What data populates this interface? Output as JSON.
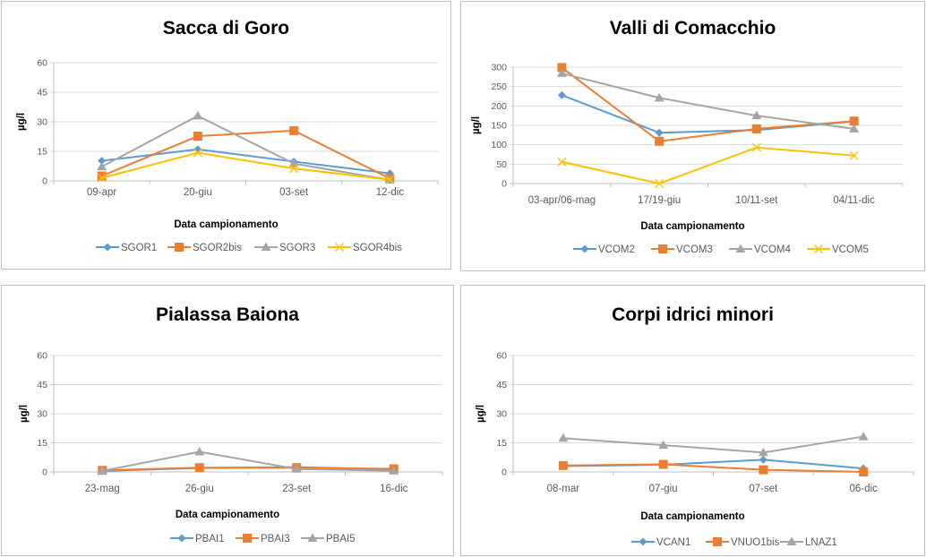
{
  "chart_data": [
    {
      "type": "line",
      "title": "Sacca di Goro",
      "xlabel": "Data campionamento",
      "ylabel": "µg/l",
      "categories": [
        "09-apr",
        "20-giu",
        "03-set",
        "12-dic"
      ],
      "ylim": [
        0,
        60
      ],
      "yticks": [
        0,
        15,
        30,
        45,
        60
      ],
      "grid": true,
      "legend": "bottom",
      "series": [
        {
          "name": "SGOR1",
          "color": "#5B9BD5",
          "marker": "diamond",
          "values": [
            10.2,
            16.0,
            9.8,
            3.8
          ]
        },
        {
          "name": "SGOR2bis",
          "color": "#ED7D31",
          "marker": "square",
          "values": [
            2.5,
            22.7,
            25.5,
            1.2
          ]
        },
        {
          "name": "SGOR3",
          "color": "#A5A5A5",
          "marker": "triangle",
          "values": [
            7.2,
            33.0,
            8.8,
            0.5
          ]
        },
        {
          "name": "SGOR4bis",
          "color": "#FFC000",
          "marker": "x",
          "values": [
            1.5,
            14.3,
            6.3,
            0.6
          ]
        }
      ]
    },
    {
      "type": "line",
      "title": "Valli di Comacchio",
      "xlabel": "Data campionamento",
      "ylabel": "µg/l",
      "categories": [
        "03-apr/06-mag",
        "17/19-giu",
        "10/11-set",
        "04/11-dic"
      ],
      "ylim": [
        0,
        300
      ],
      "yticks": [
        0,
        50,
        100,
        150,
        200,
        250,
        300
      ],
      "grid": true,
      "legend": "bottom",
      "series": [
        {
          "name": "VCOM2",
          "color": "#5B9BD5",
          "marker": "diamond",
          "values": [
            228,
            131,
            138,
            160
          ]
        },
        {
          "name": "VCOM3",
          "color": "#ED7D31",
          "marker": "square",
          "values": [
            299,
            109,
            141,
            161
          ]
        },
        {
          "name": "VCOM4",
          "color": "#A5A5A5",
          "marker": "triangle",
          "values": [
            284,
            221,
            175,
            141
          ]
        },
        {
          "name": "VCOM5",
          "color": "#FFC000",
          "marker": "x",
          "values": [
            56,
            0,
            93,
            72
          ]
        }
      ]
    },
    {
      "type": "line",
      "title": "Pialassa Baiona",
      "xlabel": "Data campionamento",
      "ylabel": "µg/l",
      "categories": [
        "23-mag",
        "26-giu",
        "23-set",
        "16-dic"
      ],
      "ylim": [
        0,
        60
      ],
      "yticks": [
        0,
        15,
        30,
        45,
        60
      ],
      "grid": true,
      "legend": "bottom",
      "series": [
        {
          "name": "PBAI1",
          "color": "#5B9BD5",
          "marker": "diamond",
          "values": [
            0.5,
            2.0,
            2.5,
            1.2
          ]
        },
        {
          "name": "PBAI3",
          "color": "#ED7D31",
          "marker": "square",
          "values": [
            0.8,
            2.2,
            2.2,
            1.6
          ]
        },
        {
          "name": "PBAI5",
          "color": "#A5A5A5",
          "marker": "triangle",
          "values": [
            0.5,
            10.4,
            1.5,
            0.6
          ]
        }
      ]
    },
    {
      "type": "line",
      "title": "Corpi idrici minori",
      "xlabel": "Data campionamento",
      "ylabel": "µg/l",
      "categories": [
        "08-mar",
        "07-giu",
        "07-set",
        "06-dic"
      ],
      "ylim": [
        0,
        60
      ],
      "yticks": [
        0,
        15,
        30,
        45,
        60
      ],
      "grid": true,
      "legend": "bottom",
      "series": [
        {
          "name": "VCAN1",
          "color": "#5B9BD5",
          "marker": "diamond",
          "values": [
            3.0,
            3.7,
            6.3,
            1.8
          ]
        },
        {
          "name": "VNUO1bis",
          "color": "#ED7D31",
          "marker": "square",
          "values": [
            3.3,
            3.9,
            1.1,
            0.0
          ]
        },
        {
          "name": "LNAZ1",
          "color": "#A5A5A5",
          "marker": "triangle",
          "values": [
            17.4,
            13.8,
            10.0,
            18.2
          ]
        }
      ]
    }
  ]
}
